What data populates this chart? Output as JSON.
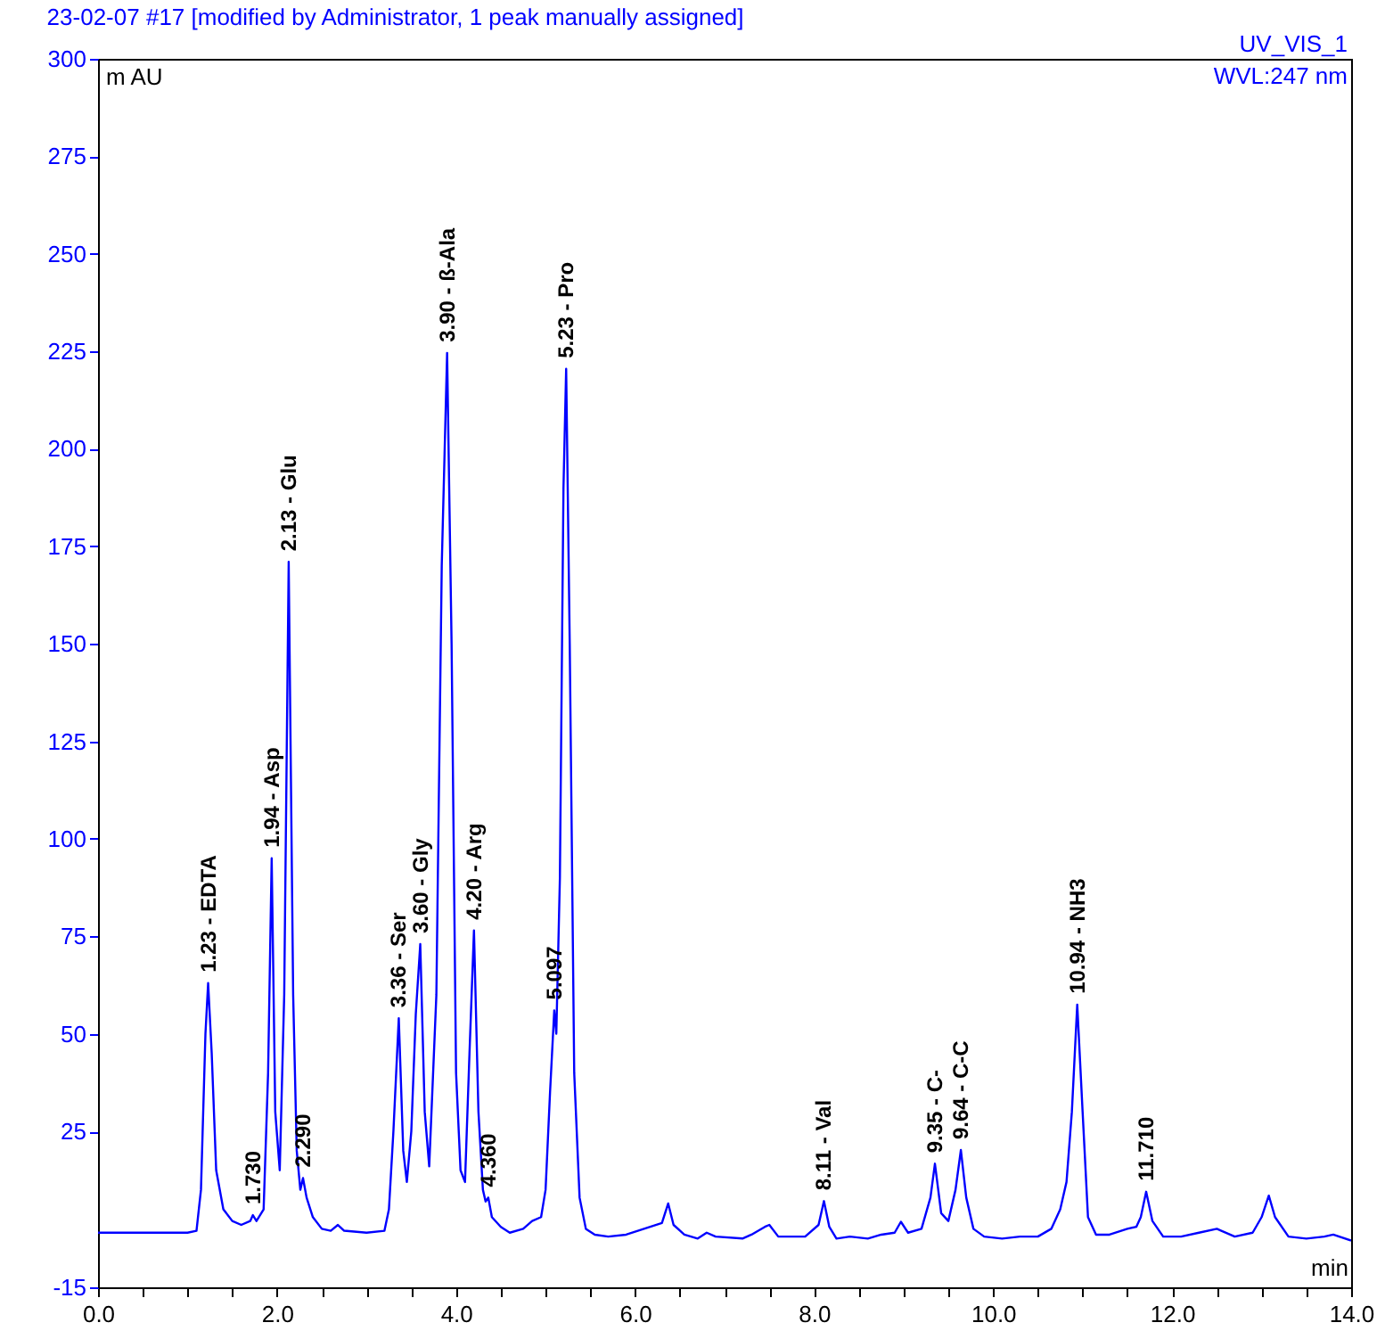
{
  "chart_data": {
    "type": "line",
    "title": "23-02-07 #17 [modified by Administrator, 1 peak manually assigned]",
    "xlabel": "min",
    "ylabel": "m AU",
    "xlim": [
      0,
      14
    ],
    "xticks": [
      {
        "value": 0,
        "label": "0.0"
      },
      {
        "value": 0.5,
        "label": null
      },
      {
        "value": 1,
        "label": null
      },
      {
        "value": 1.5,
        "label": null
      },
      {
        "value": 2,
        "label": "2.0"
      },
      {
        "value": 2.5,
        "label": null
      },
      {
        "value": 3,
        "label": null
      },
      {
        "value": 3.5,
        "label": null
      },
      {
        "value": 4,
        "label": "4.0"
      },
      {
        "value": 4.5,
        "label": null
      },
      {
        "value": 5,
        "label": null
      },
      {
        "value": 5.5,
        "label": null
      },
      {
        "value": 6,
        "label": "6.0"
      },
      {
        "value": 6.5,
        "label": null
      },
      {
        "value": 7,
        "label": null
      },
      {
        "value": 7.5,
        "label": null
      },
      {
        "value": 8,
        "label": "8.0"
      },
      {
        "value": 8.5,
        "label": null
      },
      {
        "value": 9,
        "label": null
      },
      {
        "value": 9.5,
        "label": null
      },
      {
        "value": 10,
        "label": "10.0"
      },
      {
        "value": 10.5,
        "label": null
      },
      {
        "value": 11,
        "label": null
      },
      {
        "value": 11.5,
        "label": null
      },
      {
        "value": 12,
        "label": "12.0"
      },
      {
        "value": 12.5,
        "label": null
      },
      {
        "value": 13,
        "label": null
      },
      {
        "value": 13.5,
        "label": null
      },
      {
        "value": 14,
        "label": "14.0"
      }
    ],
    "ylim": [
      -15,
      300
    ],
    "yticks": [
      -15,
      25,
      50,
      75,
      100,
      125,
      150,
      175,
      200,
      225,
      250,
      275,
      300
    ],
    "grid": false,
    "marker": "none",
    "line_style": "solid",
    "x": [
      0,
      1.0,
      1.1,
      1.15,
      1.2,
      1.23,
      1.27,
      1.32,
      1.4,
      1.5,
      1.6,
      1.7,
      1.73,
      1.77,
      1.85,
      1.9,
      1.94,
      1.98,
      2.03,
      2.08,
      2.13,
      2.18,
      2.22,
      2.26,
      2.29,
      2.33,
      2.4,
      2.5,
      2.6,
      2.68,
      2.75,
      3.0,
      3.2,
      3.25,
      3.3,
      3.36,
      3.41,
      3.45,
      3.5,
      3.55,
      3.6,
      3.65,
      3.7,
      3.78,
      3.84,
      3.9,
      3.95,
      4.0,
      4.05,
      4.1,
      4.15,
      4.2,
      4.25,
      4.3,
      4.33,
      4.36,
      4.4,
      4.5,
      4.6,
      4.75,
      4.85,
      4.95,
      5.0,
      5.05,
      5.097,
      5.12,
      5.16,
      5.2,
      5.23,
      5.27,
      5.32,
      5.38,
      5.45,
      5.55,
      5.7,
      5.9,
      6.1,
      6.3,
      6.37,
      6.43,
      6.55,
      6.7,
      6.8,
      6.9,
      7.2,
      7.3,
      7.45,
      7.5,
      7.6,
      7.9,
      8.05,
      8.11,
      8.17,
      8.25,
      8.4,
      8.6,
      8.75,
      8.9,
      8.97,
      9.05,
      9.2,
      9.3,
      9.35,
      9.42,
      9.5,
      9.58,
      9.64,
      9.7,
      9.78,
      9.9,
      10.1,
      10.3,
      10.5,
      10.65,
      10.75,
      10.82,
      10.88,
      10.94,
      11.0,
      11.06,
      11.15,
      11.3,
      11.5,
      11.6,
      11.65,
      11.71,
      11.78,
      11.9,
      12.1,
      12.3,
      12.5,
      12.55,
      12.7,
      12.9,
      13.0,
      13.08,
      13.15,
      13.3,
      13.5,
      13.7,
      13.8,
      14.0
    ],
    "series": [
      {
        "color": "#0000ff",
        "values": [
          -1,
          -1,
          -0.5,
          10,
          50,
          63,
          45,
          15,
          5,
          2,
          1,
          2,
          3.5,
          2,
          5,
          40,
          95,
          30,
          15,
          60,
          171,
          60,
          20,
          10,
          13,
          8,
          3,
          0,
          -0.5,
          1,
          -0.5,
          -1,
          -0.5,
          5,
          25,
          54,
          20,
          12,
          25,
          55,
          73,
          30,
          16,
          60,
          170,
          224.6,
          150,
          40,
          15,
          12,
          45,
          76.5,
          30,
          10,
          7,
          8,
          3,
          0.5,
          -1,
          0,
          2,
          3,
          10,
          35,
          56,
          50,
          90,
          190,
          220.5,
          150,
          40,
          8,
          0,
          -1.5,
          -2,
          -1.5,
          0,
          1.5,
          6.5,
          1,
          -1.5,
          -2.5,
          -1,
          -2,
          -2.5,
          -1.5,
          0.5,
          1,
          -2,
          -2,
          1,
          7.1,
          0.5,
          -2.5,
          -2,
          -2.5,
          -1.5,
          -1,
          1.8,
          -1,
          0,
          8,
          16.7,
          4,
          2,
          10,
          20.2,
          8,
          0,
          -2,
          -2.5,
          -2,
          -2,
          0,
          5,
          12,
          30,
          57.5,
          30,
          3,
          -1.5,
          -1.5,
          0,
          0.5,
          3,
          9.5,
          2,
          -2,
          -2,
          -1,
          0,
          -0.5,
          -2,
          -1,
          3,
          8.5,
          3,
          -2,
          -2.5,
          -2,
          -1.5,
          -3
        ]
      }
    ],
    "annotations": [
      "UV_VIS_1",
      "WVL:247 nm",
      {
        "text": "1.23 - EDTA",
        "x": 1.23,
        "y": 63
      },
      {
        "text": "1.730",
        "x": 1.73,
        "y": 3.5
      },
      {
        "text": "1.94 - Asp",
        "x": 1.94,
        "y": 95
      },
      {
        "text": "2.13 - Glu",
        "x": 2.13,
        "y": 171
      },
      {
        "text": "2.290",
        "x": 2.29,
        "y": 13
      },
      {
        "text": "3.36 - Ser",
        "x": 3.36,
        "y": 54
      },
      {
        "text": "3.60 - Gly",
        "x": 3.6,
        "y": 73
      },
      {
        "text": "3.90 - ß-Ala",
        "x": 3.9,
        "y": 224.6
      },
      {
        "text": "4.20 - Arg",
        "x": 4.2,
        "y": 76.5
      },
      {
        "text": "4.360",
        "x": 4.36,
        "y": 8
      },
      {
        "text": "5.097",
        "x": 5.097,
        "y": 56
      },
      {
        "text": "5.23 - Pro",
        "x": 5.23,
        "y": 220.5
      },
      {
        "text": "8.11 - Val",
        "x": 8.11,
        "y": 7.1
      },
      {
        "text": "9.35 - C-",
        "x": 9.35,
        "y": 16.7
      },
      {
        "text": "9.64 - C-C",
        "x": 9.64,
        "y": 20.2
      },
      {
        "text": "10.94 - NH3",
        "x": 10.94,
        "y": 57.5
      },
      {
        "text": "11.710",
        "x": 11.71,
        "y": 9.5
      }
    ]
  }
}
